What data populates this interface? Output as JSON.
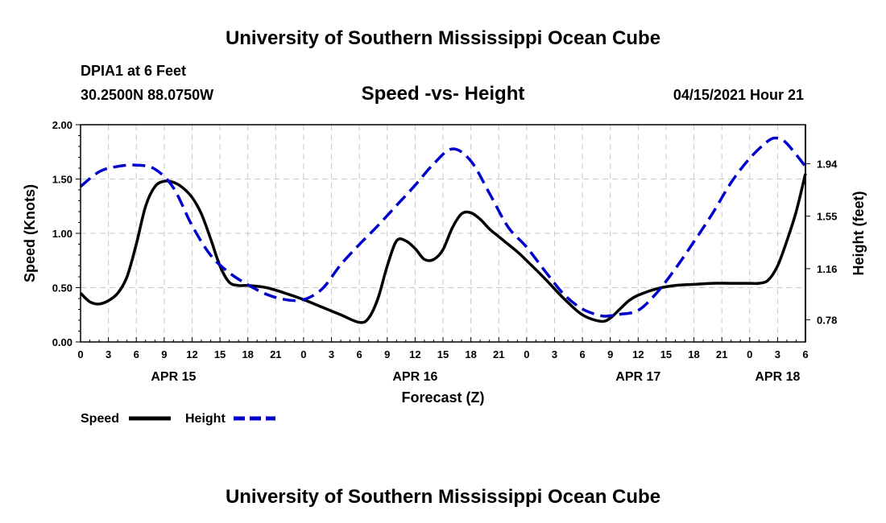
{
  "header": {
    "top_title": "University of Southern Mississippi Ocean Cube",
    "station": "DPIA1 at 6 Feet",
    "coords": "30.2500N  88.0750W",
    "date": "04/15/2021 Hour 21",
    "bottom_title": "University of Southern Mississippi Ocean Cube"
  },
  "colors": {
    "speed": "#000000",
    "height": "#0000cc",
    "grid": "#c8c8c8"
  },
  "chart_data": {
    "type": "line",
    "title": "Speed -vs- Height",
    "xlabel": "Forecast (Z)",
    "ylabel": "Speed (Knots)",
    "y2label": "Height (feet)",
    "x_range": [
      0,
      78
    ],
    "ylim": [
      0,
      2
    ],
    "y2lim": [
      0.615,
      2.23
    ],
    "x_tick_labels": [
      "0",
      "3",
      "6",
      "9",
      "12",
      "15",
      "18",
      "21",
      "0",
      "3",
      "6",
      "9",
      "12",
      "15",
      "18",
      "21",
      "0",
      "3",
      "6",
      "9",
      "12",
      "15",
      "18",
      "21",
      "0",
      "3",
      "6"
    ],
    "date_labels": [
      {
        "label": "APR 15",
        "x": 10
      },
      {
        "label": "APR 16",
        "x": 36
      },
      {
        "label": "APR 17",
        "x": 60
      },
      {
        "label": "APR 18",
        "x": 75
      }
    ],
    "y_ticks": [
      0,
      0.5,
      1.0,
      1.5,
      2.0
    ],
    "y_tick_labels": [
      "0.00",
      "0.50",
      "1.00",
      "1.50",
      "2.00"
    ],
    "y2_ticks": [
      0.78,
      1.16,
      1.55,
      1.94
    ],
    "y2_tick_labels": [
      "0.78",
      "1.16",
      "1.55",
      "1.94"
    ],
    "grid": true,
    "legend": [
      {
        "name": "Speed",
        "style": "solid"
      },
      {
        "name": "Height",
        "style": "dashed"
      }
    ],
    "series": [
      {
        "name": "Speed",
        "axis": "left",
        "x": [
          0,
          1,
          2,
          3,
          4,
          5,
          6,
          7,
          8,
          9,
          10,
          11,
          12,
          13,
          14,
          15,
          16,
          17,
          18,
          20,
          22,
          24,
          26,
          28,
          30,
          31,
          32,
          33,
          34,
          35,
          36,
          37,
          38,
          39,
          40,
          41,
          42,
          43,
          44,
          45,
          46,
          47,
          48,
          50,
          52,
          54,
          56,
          57,
          58,
          59,
          60,
          62,
          64,
          66,
          68,
          70,
          72,
          73,
          74,
          75,
          76,
          77,
          78
        ],
        "y": [
          0.45,
          0.37,
          0.35,
          0.38,
          0.45,
          0.6,
          0.9,
          1.25,
          1.43,
          1.48,
          1.47,
          1.42,
          1.33,
          1.18,
          0.95,
          0.7,
          0.55,
          0.52,
          0.52,
          0.5,
          0.45,
          0.39,
          0.32,
          0.25,
          0.18,
          0.22,
          0.4,
          0.7,
          0.93,
          0.93,
          0.86,
          0.76,
          0.76,
          0.85,
          1.05,
          1.18,
          1.19,
          1.13,
          1.04,
          0.97,
          0.9,
          0.83,
          0.75,
          0.58,
          0.4,
          0.25,
          0.19,
          0.22,
          0.3,
          0.38,
          0.43,
          0.49,
          0.52,
          0.53,
          0.54,
          0.54,
          0.54,
          0.54,
          0.57,
          0.7,
          0.93,
          1.2,
          1.55
        ]
      },
      {
        "name": "Height",
        "axis": "right",
        "x": [
          0,
          2,
          4,
          6,
          8,
          10,
          12,
          14,
          16,
          18,
          20,
          22,
          24,
          26,
          28,
          30,
          32,
          34,
          36,
          38,
          40,
          42,
          44,
          46,
          48,
          50,
          52,
          54,
          56,
          57,
          58,
          60,
          62,
          64,
          66,
          68,
          70,
          72,
          74,
          75,
          76,
          78
        ],
        "y": [
          1.77,
          1.88,
          1.92,
          1.93,
          1.9,
          1.76,
          1.48,
          1.26,
          1.13,
          1.04,
          0.97,
          0.93,
          0.93,
          1.01,
          1.19,
          1.34,
          1.48,
          1.63,
          1.78,
          1.94,
          2.05,
          1.96,
          1.72,
          1.47,
          1.32,
          1.14,
          0.97,
          0.86,
          0.81,
          0.81,
          0.82,
          0.85,
          0.98,
          1.16,
          1.36,
          1.57,
          1.8,
          1.98,
          2.11,
          2.13,
          2.09,
          1.92
        ]
      }
    ]
  }
}
